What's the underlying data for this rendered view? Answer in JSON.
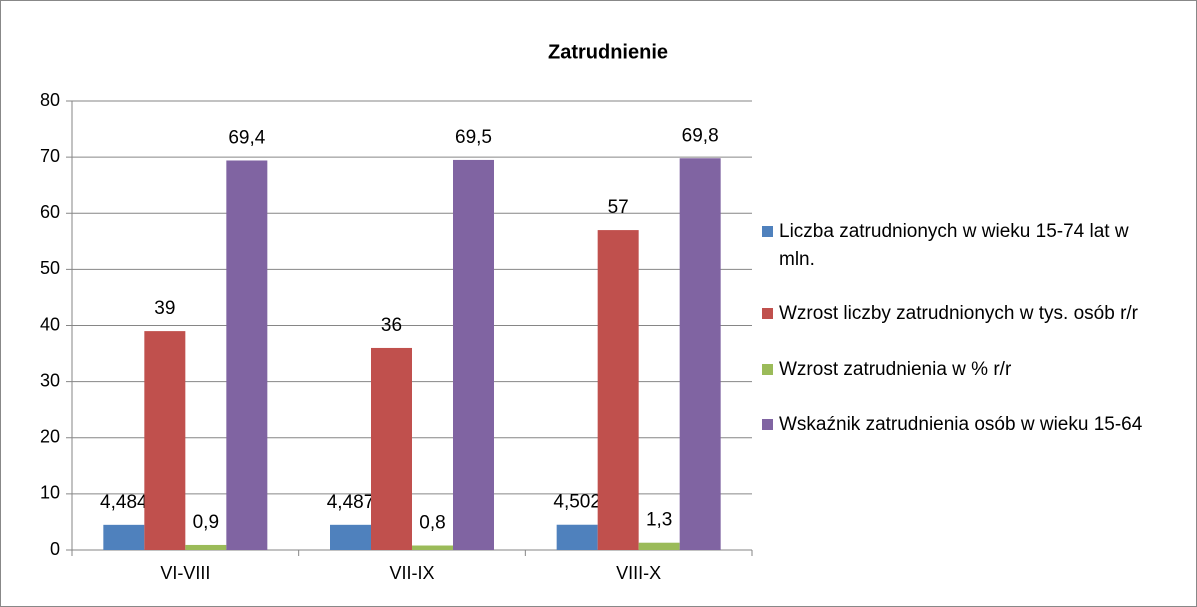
{
  "chart_data": {
    "type": "bar",
    "title": "Zatrudnienie",
    "categories": [
      "VI-VIII",
      "VII-IX",
      "VIII-X"
    ],
    "series": [
      {
        "name": "Liczba zatrudnionych w wieku 15-74 lat w mln.",
        "color": "#4f81bd",
        "values": [
          4.484,
          4.487,
          4.502
        ],
        "value_labels": [
          "4,484",
          "4,487",
          "4,502"
        ]
      },
      {
        "name": "Wzrost liczby zatrudnionych w tys. osób r/r",
        "color": "#c0504d",
        "values": [
          39,
          36,
          57
        ],
        "value_labels": [
          "39",
          "36",
          "57"
        ]
      },
      {
        "name": "Wzrost zatrudnienia w % r/r",
        "color": "#9bbb59",
        "values": [
          0.9,
          0.8,
          1.3
        ],
        "value_labels": [
          "0,9",
          "0,8",
          "1,3"
        ]
      },
      {
        "name": "Wskaźnik zatrudnienia osób w wieku 15-64",
        "color": "#8064a2",
        "values": [
          69.4,
          69.5,
          69.8
        ],
        "value_labels": [
          "69,4",
          "69,5",
          "69,8"
        ]
      }
    ],
    "ylim": [
      0,
      80
    ],
    "yticks": [
      0,
      10,
      20,
      30,
      40,
      50,
      60,
      70,
      80
    ],
    "grid": true
  }
}
